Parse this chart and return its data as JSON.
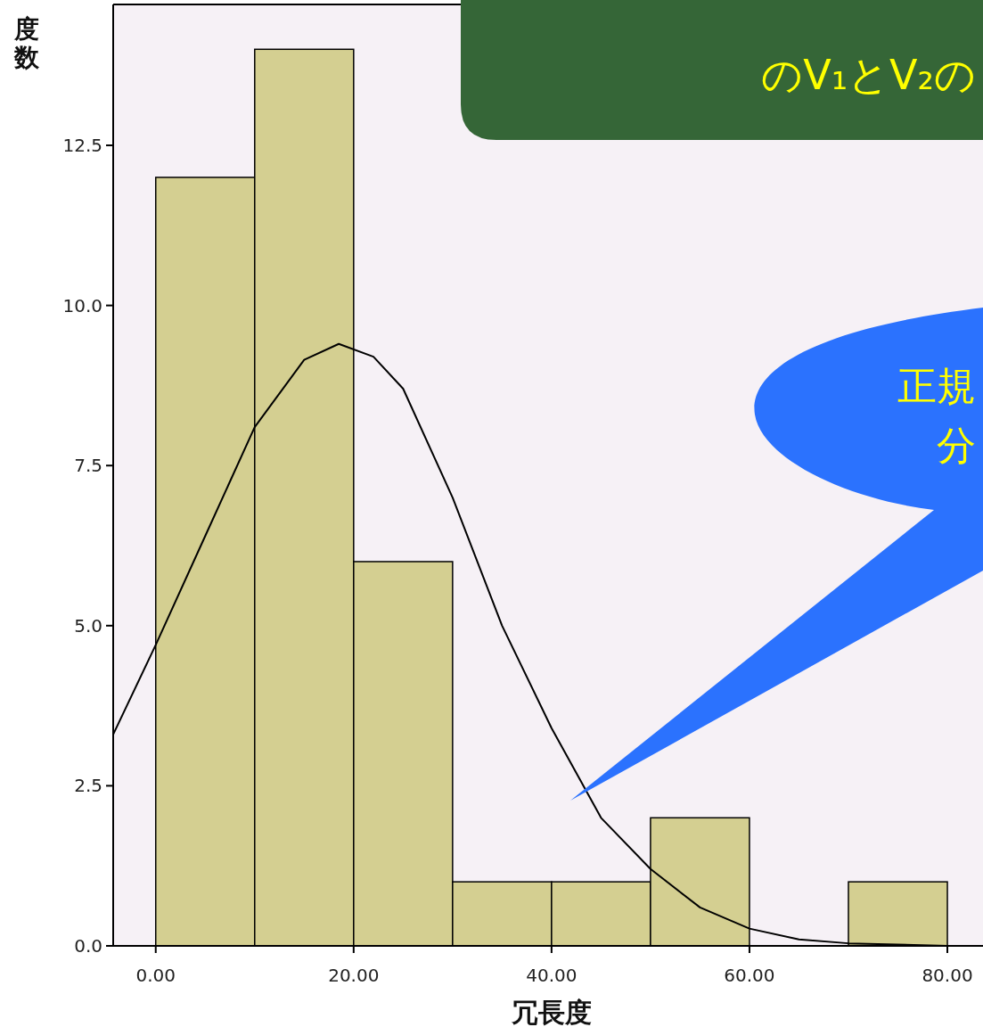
{
  "chart_data": {
    "type": "histogram",
    "xlabel": "冗長度",
    "ylabel": "度数",
    "bins": [
      0,
      10,
      20,
      30,
      40,
      50,
      60,
      70,
      80
    ],
    "values": [
      12,
      14,
      6,
      1,
      1,
      2,
      0,
      1
    ],
    "color": "#d4cf91",
    "series": [
      {
        "type": "line",
        "color": "#000000",
        "x": [
          -4.3,
          0,
          5,
          10,
          15,
          18.5,
          22,
          25,
          30,
          35,
          40,
          45,
          50,
          55,
          60,
          65,
          70,
          80
        ],
        "values": [
          3.3,
          4.7,
          6.4,
          8.1,
          9.15,
          9.4,
          9.2,
          8.7,
          7.0,
          5.0,
          3.4,
          2.0,
          1.2,
          0.6,
          0.27,
          0.1,
          0.04,
          0.0
        ]
      }
    ],
    "xlim": [
      -4.3,
      83.6
    ],
    "ylim": [
      0,
      14.7
    ],
    "xticks": [
      {
        "value": 0,
        "label": "0.00"
      },
      {
        "value": 20,
        "label": "20.00"
      },
      {
        "value": 40,
        "label": "40.00"
      },
      {
        "value": 60,
        "label": "60.00"
      },
      {
        "value": 80,
        "label": "80.00"
      }
    ],
    "yticks": [
      {
        "value": 0,
        "label": "0.0"
      },
      {
        "value": 2.5,
        "label": "2.5"
      },
      {
        "value": 5,
        "label": "5.0"
      },
      {
        "value": 7.5,
        "label": "7.5"
      },
      {
        "value": 10,
        "label": "10.0"
      },
      {
        "value": 12.5,
        "label": "12.5"
      }
    ],
    "grid": false,
    "annotations": [
      "のV₁とV₂の",
      "正規",
      "分"
    ]
  }
}
